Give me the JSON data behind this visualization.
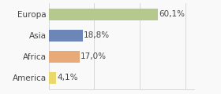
{
  "categories": [
    "Europa",
    "Asia",
    "Africa",
    "America"
  ],
  "values": [
    60.1,
    18.8,
    17.0,
    4.1
  ],
  "labels": [
    "60,1%",
    "18,8%",
    "17,0%",
    "4,1%"
  ],
  "bar_colors": [
    "#b5c98e",
    "#6d86b8",
    "#e8aa78",
    "#e8d96a"
  ],
  "background_color": "#f9f9f9",
  "xlim": [
    0,
    80
  ],
  "bar_height": 0.55,
  "label_fontsize": 7.5,
  "tick_fontsize": 7.5,
  "grid_ticks": [
    0,
    25,
    50,
    75
  ]
}
